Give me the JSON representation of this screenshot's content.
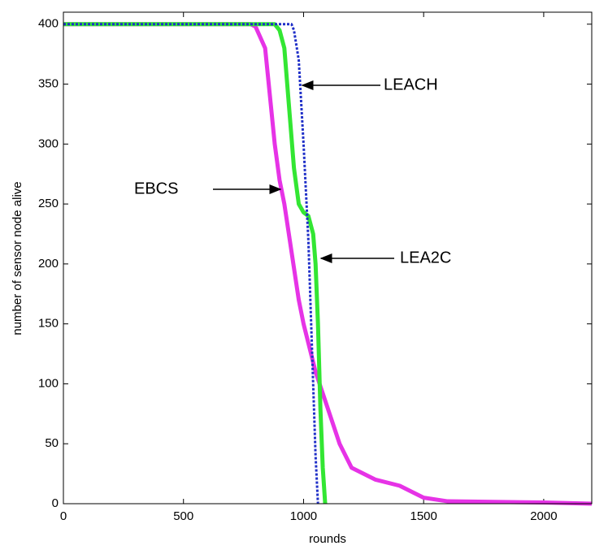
{
  "chart_data": {
    "type": "line",
    "xlabel": "rounds",
    "ylabel": "number of sensor node alive",
    "xlim": [
      0,
      2200
    ],
    "xticks": [
      0,
      500,
      1000,
      1500,
      2000
    ],
    "ylim": [
      0,
      410
    ],
    "yticks": [
      0,
      50,
      100,
      150,
      200,
      250,
      300,
      350,
      400
    ],
    "series": [
      {
        "name": "LEACH",
        "color": "#1f2fc8",
        "x": [
          0,
          950,
          960,
          980,
          1000,
          1010,
          1020,
          1030,
          1040,
          1050,
          1060
        ],
        "values": [
          400,
          400,
          395,
          370,
          300,
          260,
          220,
          160,
          100,
          40,
          0
        ]
      },
      {
        "name": "LEA2C",
        "color": "#33e633",
        "x": [
          0,
          880,
          900,
          920,
          940,
          960,
          980,
          1000,
          1020,
          1040,
          1050,
          1060,
          1070,
          1080,
          1090
        ],
        "values": [
          400,
          400,
          395,
          380,
          330,
          280,
          250,
          243,
          240,
          225,
          200,
          150,
          80,
          30,
          0
        ]
      },
      {
        "name": "EBCS",
        "color": "#e633e6",
        "x": [
          0,
          780,
          800,
          840,
          860,
          880,
          900,
          920,
          950,
          980,
          1000,
          1050,
          1100,
          1150,
          1200,
          1300,
          1400,
          1500,
          1600,
          2000,
          2200
        ],
        "values": [
          400,
          400,
          398,
          380,
          340,
          300,
          270,
          250,
          210,
          170,
          150,
          110,
          80,
          50,
          30,
          20,
          15,
          5,
          2,
          1,
          0
        ]
      }
    ]
  }
}
